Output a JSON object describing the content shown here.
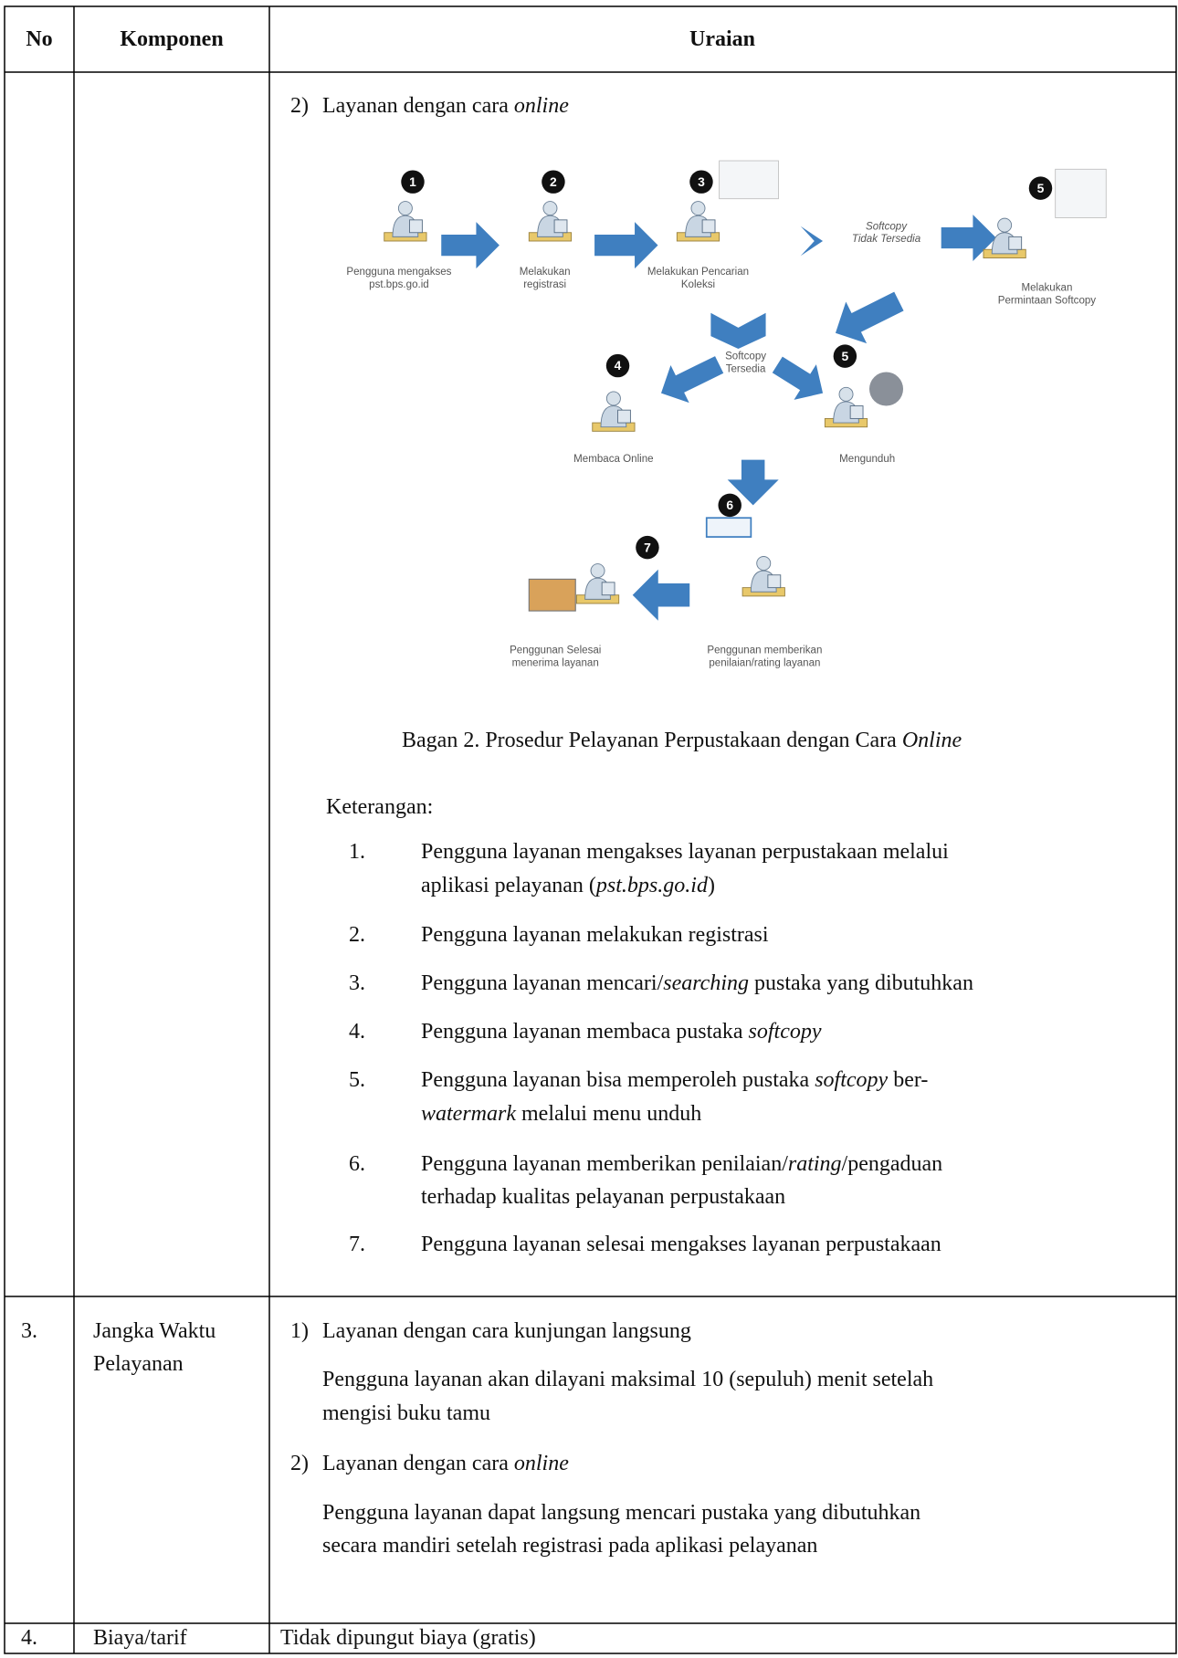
{
  "table": {
    "headers": [
      "No",
      "Komponen",
      "Uraian"
    ],
    "continued_row": {
      "item_number": "2)",
      "item_title": [
        "Layanan dengan cara ",
        "online"
      ],
      "diagram": {
        "nodes": [
          {
            "number": "1",
            "label": [
              "Pengguna mengakses",
              "pst.bps.go.id"
            ]
          },
          {
            "number": "2",
            "label": [
              "Melakukan",
              "registrasi"
            ]
          },
          {
            "number": "3",
            "label": [
              "Melakukan Pencarian",
              "Koleksi"
            ]
          },
          {
            "number": "5",
            "label": [
              "Melakukan",
              "Permintaan Softcopy"
            ]
          },
          {
            "number": "4",
            "label": [
              "Membaca Online"
            ]
          },
          {
            "number": "5",
            "label": [
              "Mengunduh"
            ]
          },
          {
            "number": "6",
            "label": [
              "Penggunan memberikan",
              "penilaian/rating layanan"
            ]
          },
          {
            "number": "7",
            "label": [
              "Penggunan Selesai",
              "menerima layanan"
            ]
          }
        ],
        "arrow_labels": [
          [
            "Softcopy",
            "Tidak Tersedia"
          ],
          [
            "Softcopy",
            "Tersedia"
          ]
        ]
      },
      "caption": [
        "Bagan 2. Prosedur Pelayanan Perpustakaan dengan Cara ",
        "Online"
      ],
      "notes_title": "Keterangan:",
      "notes": [
        {
          "number": "1.",
          "lines": [
            [
              "Pengguna layanan mengakses layanan perpustakaan melalui"
            ],
            [
              "aplikasi pelayanan (",
              "pst.bps.go.id",
              ")"
            ]
          ]
        },
        {
          "number": "2.",
          "lines": [
            [
              "Pengguna layanan melakukan registrasi"
            ]
          ]
        },
        {
          "number": "3.",
          "lines": [
            [
              "Pengguna layanan mencari/",
              "searching",
              " pustaka yang dibutuhkan"
            ]
          ]
        },
        {
          "number": "4.",
          "lines": [
            [
              "Pengguna layanan membaca pustaka ",
              "softcopy"
            ]
          ]
        },
        {
          "number": "5.",
          "lines": [
            [
              "Pengguna layanan bisa memperoleh pustaka ",
              "softcopy",
              " ber-"
            ],
            [
              "watermark",
              " melalui menu unduh"
            ]
          ]
        },
        {
          "number": "6.",
          "lines": [
            [
              "Pengguna layanan memberikan penilaian/",
              "rating",
              "/pengaduan"
            ],
            [
              "terhadap kualitas pelayanan perpustakaan"
            ]
          ]
        },
        {
          "number": "7.",
          "lines": [
            [
              "Pengguna layanan selesai mengakses layanan perpustakaan"
            ]
          ]
        }
      ]
    },
    "rows": [
      {
        "no": "3.",
        "component": [
          "Jangka Waktu",
          "Pelayanan"
        ],
        "items": [
          {
            "number": "1)",
            "title": [
              "Layanan dengan cara kunjungan langsung"
            ],
            "text": [
              "Pengguna layanan akan dilayani maksimal 10 (sepuluh) menit setelah",
              "mengisi buku tamu"
            ]
          },
          {
            "number": "2)",
            "title": [
              "Layanan dengan cara ",
              "online"
            ],
            "text": [
              "Pengguna layanan dapat langsung mencari pustaka yang dibutuhkan",
              "secara mandiri setelah registrasi pada aplikasi pelayanan"
            ]
          }
        ]
      },
      {
        "no": "4.",
        "component": [
          "Biaya/tarif"
        ],
        "description": "Tidak dipungut biaya (gratis)"
      }
    ]
  }
}
